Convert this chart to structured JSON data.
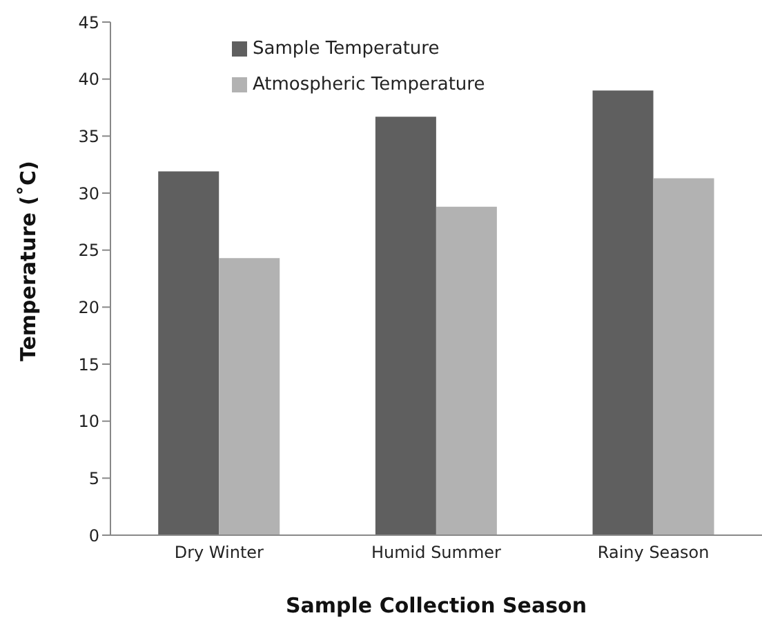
{
  "chart_data": {
    "type": "bar",
    "xlabel": "Sample Collection Season",
    "ylabel": "Temperature (˚C)",
    "categories": [
      "Dry Winter",
      "Humid Summer",
      "Rainy Season"
    ],
    "series": [
      {
        "name": "Sample Temperature",
        "color": "#5f5f5f",
        "values": [
          31.9,
          36.7,
          39.0
        ]
      },
      {
        "name": "Atmospheric Temperature",
        "color": "#b2b2b2",
        "values": [
          24.3,
          28.8,
          31.3
        ]
      }
    ],
    "ylim": [
      0,
      45
    ],
    "yticks": [
      0,
      5,
      10,
      15,
      20,
      25,
      30,
      35,
      40,
      45
    ],
    "grid": false,
    "legend": "top"
  }
}
